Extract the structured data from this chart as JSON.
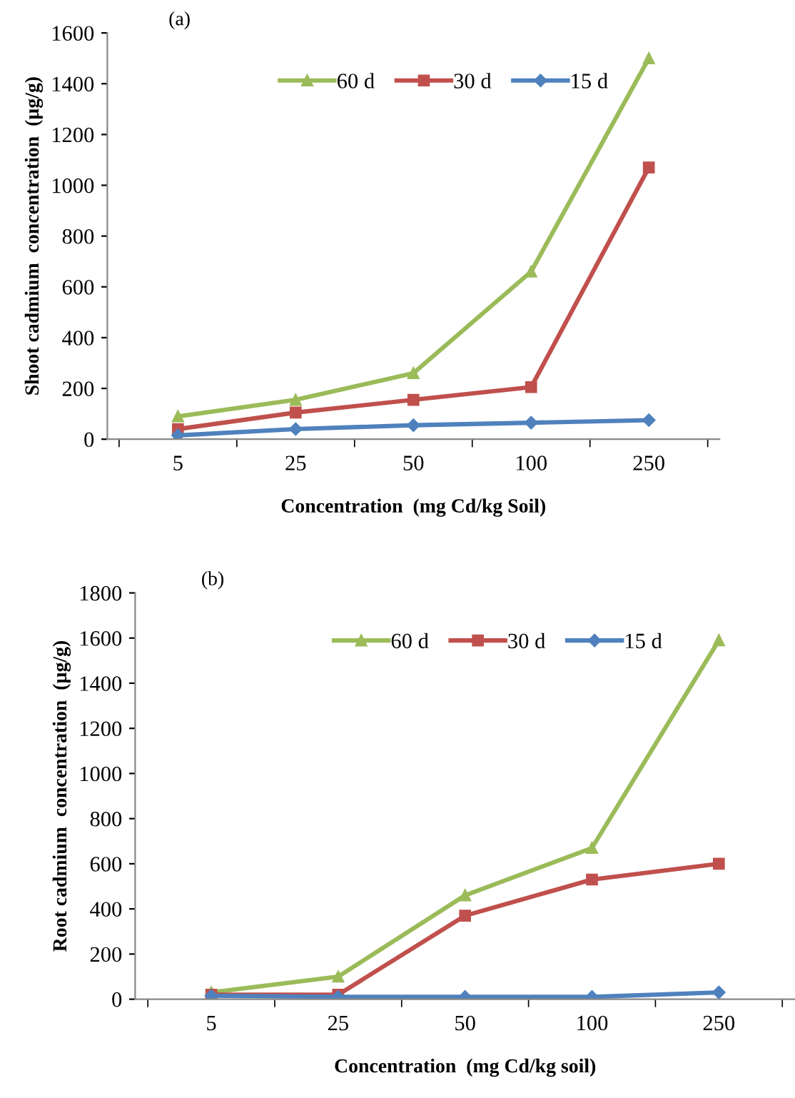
{
  "chart_data": [
    {
      "type": "line",
      "title": "(a)",
      "xlabel": "Concentration  (mg Cd/kg Soil)",
      "ylabel": "Shoot cadmium  concentration  (µg/g)",
      "categories": [
        "5",
        "25",
        "50",
        "100",
        "250"
      ],
      "series": [
        {
          "name": "60 d",
          "color": "#9bbb59",
          "marker": "triangle",
          "values": [
            90,
            155,
            260,
            660,
            1500
          ]
        },
        {
          "name": "30 d",
          "color": "#c0504d",
          "marker": "square",
          "values": [
            40,
            105,
            155,
            205,
            1070
          ]
        },
        {
          "name": "15 d",
          "color": "#4f81bd",
          "marker": "diamond",
          "values": [
            15,
            40,
            55,
            65,
            75
          ]
        }
      ],
      "ylim": [
        0,
        1600
      ],
      "yticks": [
        0,
        200,
        400,
        600,
        800,
        1000,
        1200,
        1400,
        1600
      ],
      "grid": false,
      "legend": "top"
    },
    {
      "type": "line",
      "title": "(b)",
      "xlabel": "Concentration  (mg Cd/kg soil)",
      "ylabel": "Root cadmium  concentration  (µg/g)",
      "categories": [
        "5",
        "25",
        "50",
        "100",
        "250"
      ],
      "series": [
        {
          "name": "60 d",
          "color": "#9bbb59",
          "marker": "triangle",
          "values": [
            30,
            100,
            460,
            670,
            1590
          ]
        },
        {
          "name": "30 d",
          "color": "#c0504d",
          "marker": "square",
          "values": [
            20,
            20,
            370,
            530,
            600
          ]
        },
        {
          "name": "15 d",
          "color": "#4f81bd",
          "marker": "diamond",
          "values": [
            15,
            10,
            10,
            10,
            30
          ]
        }
      ],
      "ylim": [
        0,
        1800
      ],
      "yticks": [
        0,
        200,
        400,
        600,
        800,
        1000,
        1200,
        1400,
        1600,
        1800
      ],
      "grid": false,
      "legend": "top"
    }
  ]
}
